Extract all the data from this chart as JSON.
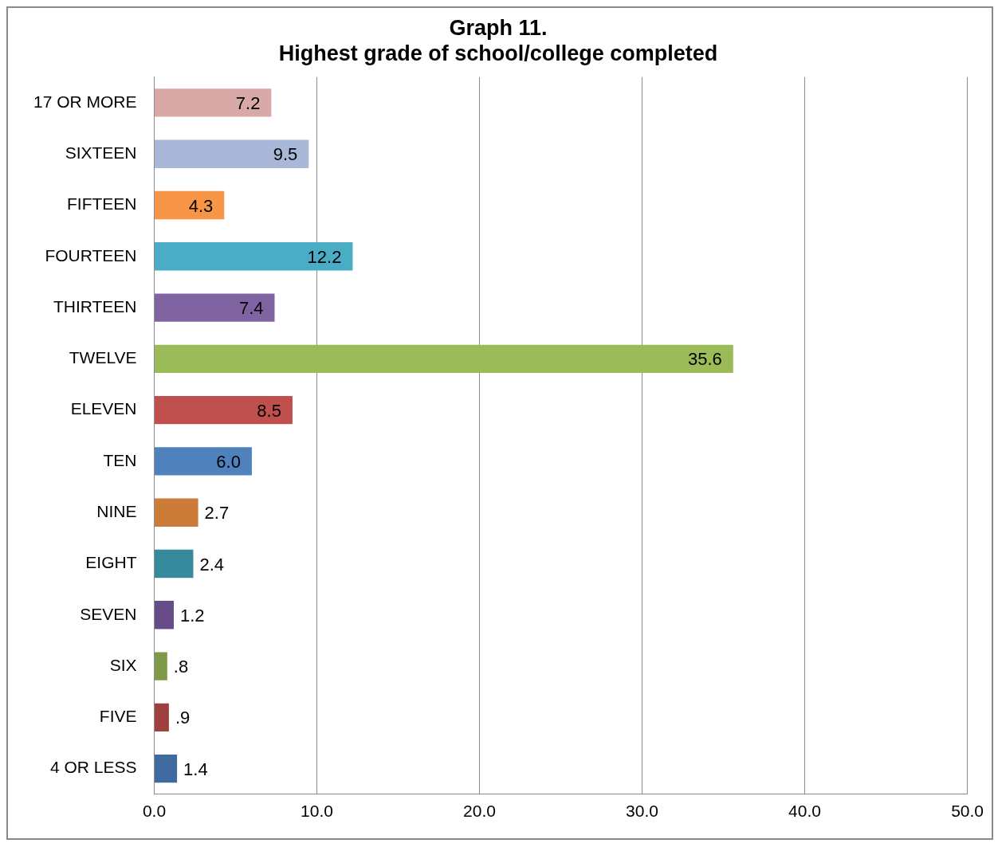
{
  "chart_data": {
    "type": "bar",
    "orientation": "horizontal",
    "title": "Graph 11.\nHighest grade of school/college completed",
    "categories": [
      "17 OR MORE",
      "SIXTEEN",
      "FIFTEEN",
      "FOURTEEN",
      "THIRTEEN",
      "TWELVE",
      "ELEVEN",
      "TEN",
      "NINE",
      "EIGHT",
      "SEVEN",
      "SIX",
      "FIVE",
      "4 OR LESS"
    ],
    "values": [
      7.2,
      9.5,
      4.3,
      12.2,
      7.4,
      35.6,
      8.5,
      6.0,
      2.7,
      2.4,
      1.2,
      0.8,
      0.9,
      1.4
    ],
    "value_labels": [
      "7.2",
      "9.5",
      "4.3",
      "12.2",
      "7.4",
      "35.6",
      "8.5",
      "6.0",
      "2.7",
      "2.4",
      "1.2",
      ".8",
      ".9",
      "1.4"
    ],
    "colors": [
      "#d9a9a8",
      "#a9b8d8",
      "#f79646",
      "#4bacc6",
      "#8064a2",
      "#9bbb59",
      "#c0504d",
      "#4f81bd",
      "#cc7b38",
      "#378a9c",
      "#664c87",
      "#7e9a48",
      "#9e403d",
      "#3e6aa0"
    ],
    "xlim": [
      0,
      50
    ],
    "xticks": [
      {
        "value": 0,
        "label": "0.0"
      },
      {
        "value": 10,
        "label": "10.0"
      },
      {
        "value": 20,
        "label": "20.0"
      },
      {
        "value": 30,
        "label": "30.0"
      },
      {
        "value": 40,
        "label": "40.0"
      },
      {
        "value": 50,
        "label": "50.0"
      }
    ],
    "grid": "x",
    "legend": false
  }
}
